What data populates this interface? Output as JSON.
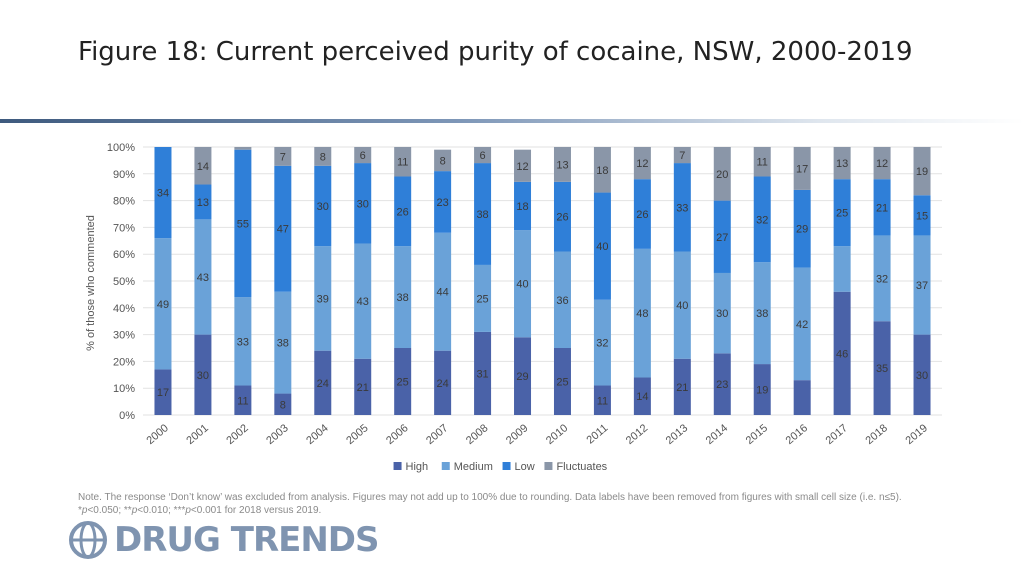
{
  "header": {
    "title": "Figure 18: Current perceived purity of cocaine, NSW, 2000-2019"
  },
  "note": {
    "text_part1": "Note. The response ‘Don’t know’ was excluded from analysis. Figures may not add up to 100% due to rounding. Data labels have been removed from figures with small cell size (i.e. n≤5).  *",
    "p1": "p",
    "text_part2": "<0.050; **",
    "p2": "p",
    "text_part3": "<0.010; ***",
    "p3": "p",
    "text_part4": "<0.001 for 2018 versus 2019."
  },
  "logo": {
    "text": "DRUG TRENDS",
    "icon": "globe-icon",
    "color": "#7f94b0"
  },
  "chart_data": {
    "type": "bar",
    "stacked": true,
    "title": "",
    "xlabel": "",
    "ylabel": "% of those who commented",
    "ylim": [
      0,
      100
    ],
    "yticks": [
      "0%",
      "10%",
      "20%",
      "30%",
      "40%",
      "50%",
      "60%",
      "70%",
      "80%",
      "90%",
      "100%"
    ],
    "grid": true,
    "legend_position": "bottom",
    "categories": [
      "2000",
      "2001",
      "2002",
      "2003",
      "2004",
      "2005",
      "2006",
      "2007",
      "2008",
      "2009",
      "2010",
      "2011",
      "2012",
      "2013",
      "2014",
      "2015",
      "2016",
      "2017",
      "2018",
      "2019"
    ],
    "series": [
      {
        "name": "High",
        "color": "#4a62a8",
        "values": [
          17,
          30,
          11,
          8,
          24,
          21,
          25,
          24,
          31,
          29,
          25,
          11,
          14,
          21,
          23,
          19,
          13,
          46,
          35,
          30
        ],
        "labels": [
          "17",
          "30",
          "11",
          "8",
          "24",
          "21",
          "25",
          "24",
          "31",
          "29",
          "25",
          "11",
          "14",
          "21",
          "23",
          "19",
          "",
          "46",
          "35",
          "30"
        ]
      },
      {
        "name": "Medium",
        "color": "#6aa2d8",
        "values": [
          49,
          43,
          33,
          38,
          39,
          43,
          38,
          44,
          25,
          40,
          36,
          32,
          48,
          40,
          30,
          38,
          42,
          17,
          32,
          37
        ],
        "labels": [
          "49",
          "43",
          "33",
          "38",
          "39",
          "43",
          "38",
          "44",
          "25",
          "40",
          "36",
          "32",
          "48",
          "40",
          "30",
          "38",
          "42",
          "",
          "32",
          "37"
        ]
      },
      {
        "name": "Low",
        "color": "#2f7fd8",
        "values": [
          34,
          13,
          55,
          47,
          30,
          30,
          26,
          23,
          38,
          18,
          26,
          40,
          26,
          33,
          27,
          32,
          29,
          25,
          21,
          15
        ],
        "labels": [
          "34",
          "13",
          "55",
          "47",
          "30",
          "30",
          "26",
          "23",
          "38",
          "18",
          "26",
          "40",
          "26",
          "33",
          "27",
          "32",
          "29",
          "25",
          "21",
          "15"
        ]
      },
      {
        "name": "Fluctuates",
        "color": "#8a96a8",
        "values": [
          0,
          14,
          1,
          7,
          8,
          6,
          11,
          8,
          6,
          12,
          13,
          18,
          12,
          7,
          20,
          11,
          17,
          13,
          12,
          19
        ],
        "labels": [
          "",
          "14",
          "",
          "7",
          "8",
          "6",
          "11",
          "8",
          "6",
          "12",
          "13",
          "18",
          "12",
          "7",
          "20",
          "11",
          "17",
          "13",
          "12",
          "19"
        ]
      }
    ]
  }
}
